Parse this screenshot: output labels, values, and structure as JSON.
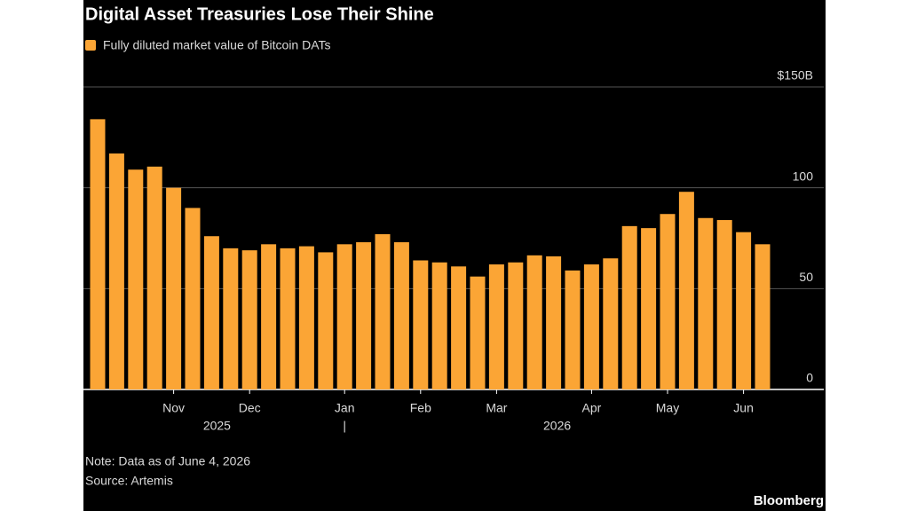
{
  "chart_data": {
    "type": "bar",
    "title": "Digital Asset Treasuries Lose Their Shine",
    "series": [
      {
        "name": "Fully diluted market value of Bitcoin DATs",
        "color": "#fba535",
        "values": [
          134,
          117,
          109,
          110.5,
          100,
          90,
          76,
          70,
          69,
          72,
          70,
          71,
          68,
          72,
          73,
          77,
          73,
          64,
          63,
          61,
          56,
          62,
          63,
          66.5,
          66,
          59,
          62,
          65,
          81,
          80,
          87,
          98,
          85,
          84,
          78,
          72
        ]
      }
    ],
    "categories": [
      null,
      null,
      null,
      null,
      "Nov",
      null,
      null,
      null,
      "Dec",
      null,
      null,
      null,
      null,
      "Jan",
      null,
      null,
      null,
      "Feb",
      null,
      null,
      null,
      "Mar",
      null,
      null,
      null,
      null,
      "Apr",
      null,
      null,
      null,
      "May",
      null,
      null,
      null,
      "Jun",
      null
    ],
    "years": [
      "2025",
      "2026"
    ],
    "year_separator": "|",
    "ylim": [
      0,
      150
    ],
    "yticks": [
      0,
      50,
      100,
      {
        "value": 150,
        "label": "$150B"
      }
    ],
    "grid": true,
    "note": "Note: Data as of June 4, 2026",
    "source": "Source: Artemis",
    "brand": "Bloomberg"
  }
}
